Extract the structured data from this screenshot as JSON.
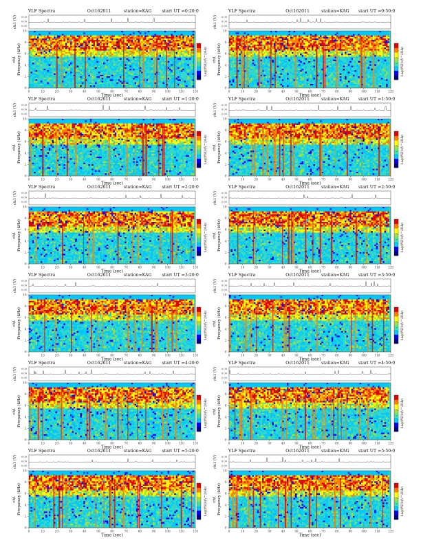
{
  "header": {
    "title": "VLF Spectra",
    "station": "station=KAG",
    "start_prefix": "start  UT ="
  },
  "axes": {
    "ch1_label": "ch1 (V)",
    "ch1_ticks": [
      "0.00",
      "0.00",
      "0.00"
    ],
    "freq_label": "Frequency (kHz)",
    "ch1_tag": "ch1",
    "freq_ticks": [
      "0",
      "2",
      "4",
      "6",
      "8",
      "10"
    ],
    "time_label": "Time (sec)",
    "time_ticks": [
      "0",
      "10",
      "20",
      "30",
      "40",
      "50",
      "60",
      "70",
      "80",
      "90",
      "100",
      "110",
      "120"
    ],
    "colorbar_label": "Log(PSD)(V^2/Hz)"
  },
  "colors": {
    "spectrogram_scale": [
      "#00007f",
      "#0000ff",
      "#00c8ff",
      "#40e0a0",
      "#a0e040",
      "#ffff00",
      "#ff8000",
      "#e00000"
    ]
  },
  "chart_data": [
    {
      "type": "heatmap",
      "title": "VLF Spectra",
      "date": "Oct162011",
      "station": "station=KAG",
      "start_ut": "0:20:0",
      "xlabel": "Time (sec)",
      "ylabel": "Frequency (kHz)",
      "xlim": [
        0,
        120
      ],
      "ylim": [
        0,
        10
      ]
    },
    {
      "type": "heatmap",
      "title": "VLF Spectra",
      "date": "Oct162011",
      "station": "station=KAG",
      "start_ut": "0:50:0",
      "xlabel": "Time (sec)",
      "ylabel": "Frequency (kHz)",
      "xlim": [
        0,
        120
      ],
      "ylim": [
        0,
        10
      ]
    },
    {
      "type": "heatmap",
      "title": "VLF Spectra",
      "date": "Oct162011",
      "station": "station=KAG",
      "start_ut": "1:20:0",
      "xlabel": "Time (sec)",
      "ylabel": "Frequency (kHz)",
      "xlim": [
        0,
        120
      ],
      "ylim": [
        0,
        10
      ]
    },
    {
      "type": "heatmap",
      "title": "VLF Spectra",
      "date": "Oct162011",
      "station": "station=KAG",
      "start_ut": "1:50:0",
      "xlabel": "Time (sec)",
      "ylabel": "Frequency (kHz)",
      "xlim": [
        0,
        120
      ],
      "ylim": [
        0,
        10
      ]
    },
    {
      "type": "heatmap",
      "title": "VLF Spectra",
      "date": "Oct162011",
      "station": "station=KAG",
      "start_ut": "2:20:0",
      "xlabel": "Time (sec)",
      "ylabel": "Frequency (kHz)",
      "xlim": [
        0,
        120
      ],
      "ylim": [
        0,
        10
      ]
    },
    {
      "type": "heatmap",
      "title": "VLF Spectra",
      "date": "Oct162011",
      "station": "station=KAG",
      "start_ut": "2:50:0",
      "xlabel": "Time (sec)",
      "ylabel": "Frequency (kHz)",
      "xlim": [
        0,
        120
      ],
      "ylim": [
        0,
        10
      ]
    },
    {
      "type": "heatmap",
      "title": "VLF Spectra",
      "date": "Oct162011",
      "station": "station=KAG",
      "start_ut": "3:20:0",
      "xlabel": "Time (sec)",
      "ylabel": "Frequency (kHz)",
      "xlim": [
        0,
        120
      ],
      "ylim": [
        0,
        10
      ]
    },
    {
      "type": "heatmap",
      "title": "VLF Spectra",
      "date": "Oct162011",
      "station": "station=KAG",
      "start_ut": "3:50:0",
      "xlabel": "Time (sec)",
      "ylabel": "Frequency (kHz)",
      "xlim": [
        0,
        120
      ],
      "ylim": [
        0,
        10
      ]
    },
    {
      "type": "heatmap",
      "title": "VLF Spectra",
      "date": "Oct162011",
      "station": "station=KAG",
      "start_ut": "4:20:0",
      "xlabel": "Time (sec)",
      "ylabel": "Frequency (kHz)",
      "xlim": [
        0,
        120
      ],
      "ylim": [
        0,
        10
      ]
    },
    {
      "type": "heatmap",
      "title": "VLF Spectra",
      "date": "Oct162011",
      "station": "station=KAG",
      "start_ut": "4:50:0",
      "xlabel": "Time (sec)",
      "ylabel": "Frequency (kHz)",
      "xlim": [
        0,
        120
      ],
      "ylim": [
        0,
        10
      ]
    },
    {
      "type": "heatmap",
      "title": "VLF Spectra",
      "date": "Oct162011",
      "station": "station=KAG",
      "start_ut": "5:20:0",
      "xlabel": "Time (sec)",
      "ylabel": "Frequency (kHz)",
      "xlim": [
        0,
        120
      ],
      "ylim": [
        0,
        10
      ]
    },
    {
      "type": "heatmap",
      "title": "VLF Spectra",
      "date": "Oct162011",
      "station": "station=KAG",
      "start_ut": "5:50:0",
      "xlabel": "Time (sec)",
      "ylabel": "Frequency (kHz)",
      "xlim": [
        0,
        120
      ],
      "ylim": [
        0,
        10
      ]
    }
  ]
}
